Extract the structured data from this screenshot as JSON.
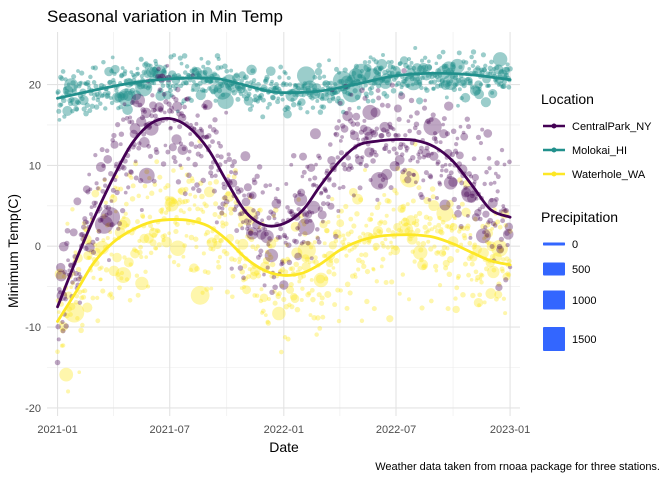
{
  "chart_data": {
    "type": "scatter",
    "title": "Seasonal variation in Min Temp",
    "xlabel": "Date",
    "ylabel": "Minimum Temp(C)",
    "caption": "Weather data taken from rnoaa package for three stations.",
    "x_range": [
      "2020-12-15",
      "2023-01-17"
    ],
    "ylim": [
      -21,
      26.5
    ],
    "x_ticks": [
      {
        "label": "2021-01",
        "date": "2021-01-01"
      },
      {
        "label": "2021-07",
        "date": "2021-07-01"
      },
      {
        "label": "2022-01",
        "date": "2022-01-01"
      },
      {
        "label": "2022-07",
        "date": "2022-07-01"
      },
      {
        "label": "2023-01",
        "date": "2023-01-01"
      }
    ],
    "y_ticks": [
      -20,
      -10,
      0,
      10,
      20
    ],
    "grid": true,
    "legend_placement": "right",
    "color_legend": {
      "title": "Location",
      "entries": [
        {
          "name": "CentralPark_NY",
          "color": "#440154"
        },
        {
          "name": "Molokai_HI",
          "color": "#21908C"
        },
        {
          "name": "Waterhole_WA",
          "color": "#FDE725"
        }
      ]
    },
    "size_legend": {
      "title": "Precipitation",
      "entries": [
        {
          "label": "0",
          "value": 0
        },
        {
          "label": "500",
          "value": 500
        },
        {
          "label": "1000",
          "value": 1000
        },
        {
          "label": "1500",
          "value": 1500
        }
      ],
      "color": "#3366FF"
    },
    "smooth_series": [
      {
        "name": "CentralPark_NY",
        "color": "#440154",
        "points": [
          [
            "2021-01-01",
            -7.5
          ],
          [
            "2021-02-01",
            -1.5
          ],
          [
            "2021-03-01",
            3.5
          ],
          [
            "2021-04-01",
            8.5
          ],
          [
            "2021-05-01",
            12.7
          ],
          [
            "2021-06-01",
            15.2
          ],
          [
            "2021-07-01",
            15.8
          ],
          [
            "2021-08-01",
            14.7
          ],
          [
            "2021-09-01",
            12.0
          ],
          [
            "2021-10-01",
            8.0
          ],
          [
            "2021-11-01",
            4.2
          ],
          [
            "2021-12-01",
            2.6
          ],
          [
            "2022-01-01",
            2.8
          ],
          [
            "2022-02-01",
            4.5
          ],
          [
            "2022-03-01",
            7.5
          ],
          [
            "2022-04-01",
            10.5
          ],
          [
            "2022-05-01",
            12.5
          ],
          [
            "2022-06-01",
            13.0
          ],
          [
            "2022-07-01",
            13.2
          ],
          [
            "2022-08-01",
            13.1
          ],
          [
            "2022-09-01",
            12.3
          ],
          [
            "2022-10-01",
            10.5
          ],
          [
            "2022-11-01",
            7.5
          ],
          [
            "2022-12-01",
            4.5
          ],
          [
            "2023-01-01",
            3.6
          ]
        ]
      },
      {
        "name": "Molokai_HI",
        "color": "#21908C",
        "points": [
          [
            "2021-01-01",
            18.3
          ],
          [
            "2021-03-01",
            19.3
          ],
          [
            "2021-05-01",
            20.2
          ],
          [
            "2021-07-01",
            20.7
          ],
          [
            "2021-09-01",
            20.8
          ],
          [
            "2021-10-01",
            20.5
          ],
          [
            "2021-12-01",
            19.3
          ],
          [
            "2022-01-01",
            19.0
          ],
          [
            "2022-03-01",
            19.2
          ],
          [
            "2022-05-01",
            20.1
          ],
          [
            "2022-07-01",
            21.1
          ],
          [
            "2022-09-01",
            21.4
          ],
          [
            "2022-11-01",
            21.2
          ],
          [
            "2023-01-01",
            20.6
          ]
        ]
      },
      {
        "name": "Waterhole_WA",
        "color": "#FDE725",
        "points": [
          [
            "2021-01-01",
            -9.3
          ],
          [
            "2021-02-01",
            -5.5
          ],
          [
            "2021-03-01",
            -2.0
          ],
          [
            "2021-04-01",
            0.5
          ],
          [
            "2021-05-01",
            2.0
          ],
          [
            "2021-06-01",
            3.0
          ],
          [
            "2021-07-01",
            3.3
          ],
          [
            "2021-08-01",
            3.2
          ],
          [
            "2021-09-01",
            2.5
          ],
          [
            "2021-10-01",
            0.8
          ],
          [
            "2021-11-01",
            -1.5
          ],
          [
            "2021-12-01",
            -3.0
          ],
          [
            "2022-01-01",
            -3.6
          ],
          [
            "2022-02-01",
            -3.3
          ],
          [
            "2022-03-01",
            -2.2
          ],
          [
            "2022-04-01",
            -0.5
          ],
          [
            "2022-05-01",
            0.6
          ],
          [
            "2022-06-01",
            1.2
          ],
          [
            "2022-07-01",
            1.4
          ],
          [
            "2022-08-01",
            1.4
          ],
          [
            "2022-09-01",
            1.1
          ],
          [
            "2022-10-01",
            0.3
          ],
          [
            "2022-11-01",
            -0.8
          ],
          [
            "2022-12-01",
            -1.8
          ],
          [
            "2023-01-01",
            -2.3
          ]
        ]
      }
    ]
  }
}
